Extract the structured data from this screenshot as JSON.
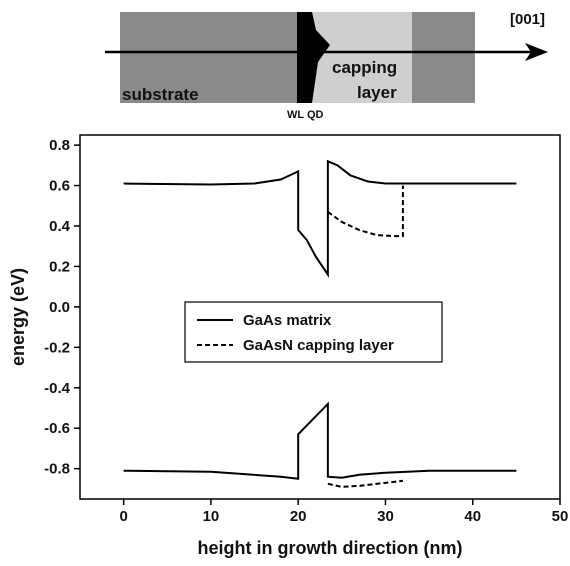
{
  "schematic": {
    "direction": "[001]",
    "substrate": "substrate",
    "capping": [
      "capping",
      "layer"
    ],
    "wl_qd": "WL QD"
  },
  "chart_data": {
    "type": "line",
    "xlabel": "height in growth direction (nm)",
    "ylabel": "energy (eV)",
    "xlim": [
      -5,
      50
    ],
    "xticks": [
      0,
      10,
      20,
      30,
      40,
      50
    ],
    "ylim": [
      -0.95,
      0.85
    ],
    "yticks": [
      0.8,
      0.6,
      0.4,
      0.2,
      {
        "value": 0,
        "label": "0.0"
      },
      -0.2,
      -0.4,
      -0.6,
      -0.8
    ],
    "legend": "center",
    "series": [
      {
        "name": "GaAs matrix",
        "color": "#000000",
        "style": "solid",
        "x": [
          0,
          10,
          15,
          18,
          20,
          20,
          21,
          22,
          23.4,
          23.4,
          24.5,
          26,
          28,
          30,
          35,
          45,
          null,
          0,
          10,
          18,
          20,
          20,
          23.4,
          23.4,
          25,
          27,
          30,
          35,
          45
        ],
        "values": [
          0.61,
          0.605,
          0.61,
          0.63,
          0.67,
          0.38,
          0.33,
          0.25,
          0.16,
          0.72,
          0.7,
          0.65,
          0.62,
          0.61,
          0.61,
          0.61,
          null,
          -0.81,
          -0.815,
          -0.84,
          -0.85,
          -0.63,
          -0.48,
          -0.84,
          -0.845,
          -0.83,
          -0.82,
          -0.81,
          -0.81
        ]
      },
      {
        "name": "GaAsN capping layer",
        "color": "#000000",
        "style": "dashed",
        "x": [
          23.4,
          25,
          27,
          29,
          31,
          32,
          32,
          null,
          23.4,
          25,
          27,
          30,
          32
        ],
        "values": [
          0.47,
          0.42,
          0.38,
          0.355,
          0.35,
          0.35,
          0.6,
          null,
          -0.875,
          -0.89,
          -0.885,
          -0.87,
          -0.86
        ]
      }
    ]
  }
}
